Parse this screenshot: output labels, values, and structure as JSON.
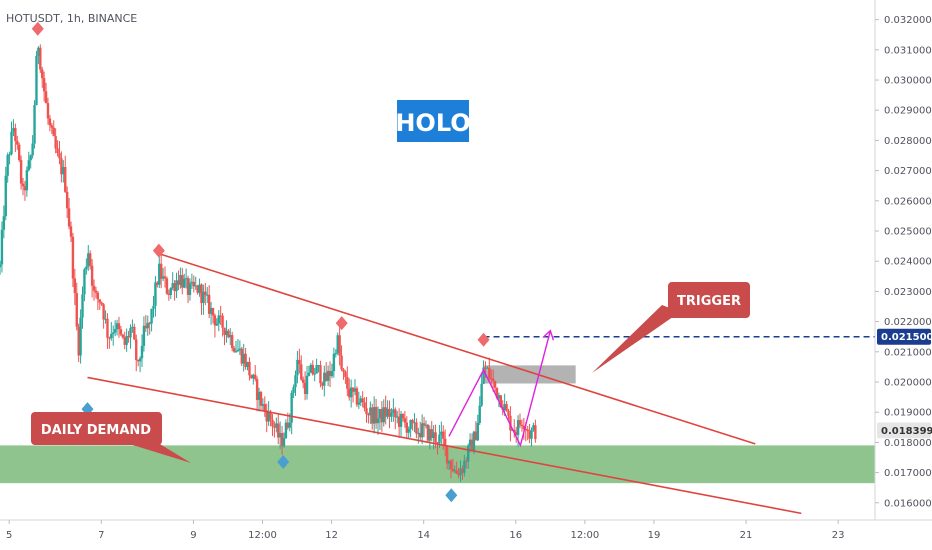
{
  "header": {
    "symbol_label": "HOTUSDT, 1h, BINANCE"
  },
  "chart_data": {
    "type": "candlestick",
    "title": "HOLO",
    "ylim": [
      0.01543,
      0.03265
    ],
    "xlim": [
      4.8,
      23.8
    ],
    "y_ticks": [
      "0.0160000",
      "0.0170000",
      "0.0180000",
      "0.0190000",
      "0.0200000",
      "0.0210000",
      "0.0220000",
      "0.0230000",
      "0.0240000",
      "0.0250000",
      "0.0260000",
      "0.0270000",
      "0.0280000",
      "0.0290000",
      "0.0300000",
      "0.0310000",
      "0.0320000"
    ],
    "x_ticks": [
      {
        "label": "5",
        "x": 5
      },
      {
        "label": "7",
        "x": 7
      },
      {
        "label": "9",
        "x": 9
      },
      {
        "label": "12:00",
        "x": 10.5
      },
      {
        "label": "12",
        "x": 12
      },
      {
        "label": "14",
        "x": 14
      },
      {
        "label": "16",
        "x": 16
      },
      {
        "label": "12:00",
        "x": 17.5
      },
      {
        "label": "19",
        "x": 19
      },
      {
        "label": "21",
        "x": 21
      },
      {
        "label": "23",
        "x": 23
      }
    ],
    "price_path": [
      [
        4.8,
        0.0238
      ],
      [
        4.95,
        0.0272
      ],
      [
        5.1,
        0.0285
      ],
      [
        5.3,
        0.0262
      ],
      [
        5.5,
        0.0277
      ],
      [
        5.62,
        0.0314
      ],
      [
        5.7,
        0.0303
      ],
      [
        5.85,
        0.0286
      ],
      [
        6.05,
        0.0274
      ],
      [
        6.2,
        0.0268
      ],
      [
        6.35,
        0.0245
      ],
      [
        6.5,
        0.021
      ],
      [
        6.62,
        0.0235
      ],
      [
        6.72,
        0.0244
      ],
      [
        6.85,
        0.0228
      ],
      [
        7.0,
        0.0227
      ],
      [
        7.15,
        0.0215
      ],
      [
        7.3,
        0.0219
      ],
      [
        7.5,
        0.0212
      ],
      [
        7.65,
        0.0218
      ],
      [
        7.8,
        0.0204
      ],
      [
        7.9,
        0.0215
      ],
      [
        8.05,
        0.0219
      ],
      [
        8.25,
        0.0237
      ],
      [
        8.45,
        0.023
      ],
      [
        8.7,
        0.0235
      ],
      [
        8.9,
        0.023
      ],
      [
        9.1,
        0.0231
      ],
      [
        9.3,
        0.0226
      ],
      [
        9.5,
        0.022
      ],
      [
        9.7,
        0.0218
      ],
      [
        9.9,
        0.0212
      ],
      [
        10.1,
        0.0208
      ],
      [
        10.3,
        0.02
      ],
      [
        10.5,
        0.0192
      ],
      [
        10.7,
        0.0187
      ],
      [
        10.9,
        0.018
      ],
      [
        11.0,
        0.0184
      ],
      [
        11.1,
        0.019
      ],
      [
        11.25,
        0.0208
      ],
      [
        11.4,
        0.0198
      ],
      [
        11.55,
        0.0203
      ],
      [
        11.7,
        0.0204
      ],
      [
        11.85,
        0.02
      ],
      [
        12.0,
        0.0204
      ],
      [
        12.12,
        0.0215
      ],
      [
        12.22,
        0.0203
      ],
      [
        12.4,
        0.0196
      ],
      [
        12.6,
        0.0194
      ],
      [
        12.8,
        0.019
      ],
      [
        13.0,
        0.0188
      ],
      [
        13.2,
        0.019
      ],
      [
        13.4,
        0.0188
      ],
      [
        13.6,
        0.0186
      ],
      [
        13.8,
        0.0184
      ],
      [
        14.0,
        0.0184
      ],
      [
        14.2,
        0.0182
      ],
      [
        14.4,
        0.0181
      ],
      [
        14.55,
        0.0174
      ],
      [
        14.7,
        0.017
      ],
      [
        14.85,
        0.0172
      ],
      [
        15.0,
        0.0178
      ],
      [
        15.12,
        0.0182
      ],
      [
        15.22,
        0.0192
      ],
      [
        15.3,
        0.0205
      ],
      [
        15.4,
        0.0203
      ],
      [
        15.55,
        0.0198
      ],
      [
        15.7,
        0.0194
      ],
      [
        15.85,
        0.0187
      ],
      [
        16.0,
        0.0184
      ],
      [
        16.15,
        0.0188
      ],
      [
        16.3,
        0.0183
      ],
      [
        16.45,
        0.0184
      ]
    ],
    "hline": {
      "value": 0.0215,
      "label": "0.0215000",
      "color": "#1a3d8f"
    },
    "last_price": {
      "value": 0.0183994,
      "label": "0.0183994"
    },
    "demand_zone": {
      "y_low": 0.01665,
      "y_high": 0.0179,
      "color": "#8fc48e",
      "label": "DAILY DEMAND"
    },
    "channel": {
      "upper": [
        [
          8.25,
          0.02425
        ],
        [
          21.2,
          0.01795
        ]
      ],
      "lower": [
        [
          6.7,
          0.02015
        ],
        [
          22.2,
          0.01565
        ]
      ],
      "color": "#e0443e"
    },
    "trigger_box": {
      "x0": 15.3,
      "x1": 17.3,
      "y_low": 0.01995,
      "y_high": 0.02055,
      "color": "#9a9a9a",
      "label": "TRIGGER"
    },
    "zigzag": [
      [
        14.55,
        0.0182
      ],
      [
        15.3,
        0.0204
      ],
      [
        16.1,
        0.0179
      ],
      [
        16.75,
        0.0217
      ]
    ],
    "zigzag_color": "#e11fe0",
    "peaks": [
      [
        5.62,
        0.0317
      ],
      [
        8.25,
        0.02435
      ],
      [
        12.22,
        0.02195
      ],
      [
        15.3,
        0.0214
      ]
    ],
    "troughs": [
      [
        6.7,
        0.0191
      ],
      [
        10.95,
        0.01735
      ],
      [
        14.6,
        0.01625
      ]
    ],
    "peak_color": "#ef6a6a",
    "trough_color": "#4a9fd0",
    "logo_colors": {
      "title_bg": "#1e7fd8",
      "callout_bg": "#c94b4b",
      "up": "#26a69a",
      "down": "#ef5350"
    }
  }
}
